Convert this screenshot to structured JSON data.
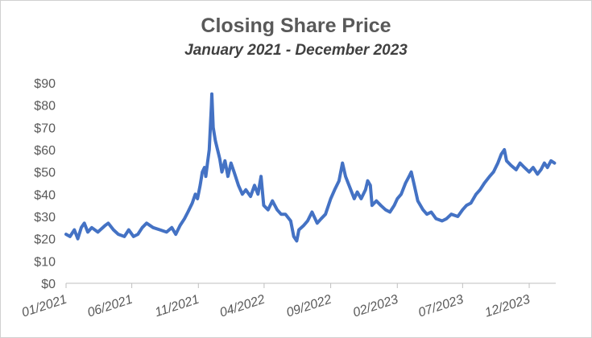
{
  "chart_data": {
    "type": "line",
    "title": "Closing Share Price",
    "subtitle": "January 2021 - December 2023",
    "xlabel": "",
    "ylabel": "",
    "ylim": [
      0,
      90
    ],
    "y_ticks": [
      "$0",
      "$10",
      "$20",
      "$30",
      "$40",
      "$50",
      "$60",
      "$70",
      "$80",
      "$90"
    ],
    "x_range": [
      "2021-01-01",
      "2024-01-31"
    ],
    "x_ticks": [
      {
        "date": "2021-01-01",
        "label": "01/2021"
      },
      {
        "date": "2021-06-01",
        "label": "06/2021"
      },
      {
        "date": "2021-11-01",
        "label": "11/2021"
      },
      {
        "date": "2022-04-01",
        "label": "04/2022"
      },
      {
        "date": "2022-09-01",
        "label": "09/2022"
      },
      {
        "date": "2023-02-01",
        "label": "02/2023"
      },
      {
        "date": "2023-07-01",
        "label": "07/2023"
      },
      {
        "date": "2023-12-01",
        "label": "12/2023"
      }
    ],
    "grid": false,
    "legend": "none",
    "series": [
      {
        "color": "#4472C4",
        "points": [
          [
            "2021-01-01",
            22
          ],
          [
            "2021-01-10",
            21
          ],
          [
            "2021-01-20",
            24
          ],
          [
            "2021-01-28",
            20
          ],
          [
            "2021-02-05",
            25
          ],
          [
            "2021-02-12",
            27
          ],
          [
            "2021-02-20",
            23
          ],
          [
            "2021-03-01",
            25
          ],
          [
            "2021-03-15",
            23
          ],
          [
            "2021-04-01",
            26
          ],
          [
            "2021-04-08",
            27
          ],
          [
            "2021-04-20",
            24
          ],
          [
            "2021-05-01",
            22
          ],
          [
            "2021-05-15",
            21
          ],
          [
            "2021-05-25",
            24
          ],
          [
            "2021-06-05",
            21
          ],
          [
            "2021-06-15",
            22
          ],
          [
            "2021-06-25",
            25
          ],
          [
            "2021-07-05",
            27
          ],
          [
            "2021-07-20",
            25
          ],
          [
            "2021-08-05",
            24
          ],
          [
            "2021-08-20",
            23
          ],
          [
            "2021-09-01",
            25
          ],
          [
            "2021-09-10",
            22
          ],
          [
            "2021-09-20",
            26
          ],
          [
            "2021-09-30",
            29
          ],
          [
            "2021-10-08",
            32
          ],
          [
            "2021-10-18",
            36
          ],
          [
            "2021-10-25",
            40
          ],
          [
            "2021-10-30",
            38
          ],
          [
            "2021-11-05",
            44
          ],
          [
            "2021-11-10",
            50
          ],
          [
            "2021-11-15",
            52
          ],
          [
            "2021-11-18",
            48
          ],
          [
            "2021-11-22",
            54
          ],
          [
            "2021-11-26",
            60
          ],
          [
            "2021-11-29",
            72
          ],
          [
            "2021-12-01",
            80
          ],
          [
            "2021-12-02",
            85
          ],
          [
            "2021-12-05",
            70
          ],
          [
            "2021-12-10",
            64
          ],
          [
            "2021-12-15",
            60
          ],
          [
            "2021-12-20",
            56
          ],
          [
            "2021-12-25",
            50
          ],
          [
            "2022-01-01",
            55
          ],
          [
            "2022-01-08",
            48
          ],
          [
            "2022-01-15",
            54
          ],
          [
            "2022-01-22",
            50
          ],
          [
            "2022-02-01",
            44
          ],
          [
            "2022-02-10",
            40
          ],
          [
            "2022-02-18",
            42
          ],
          [
            "2022-03-01",
            39
          ],
          [
            "2022-03-10",
            44
          ],
          [
            "2022-03-18",
            40
          ],
          [
            "2022-03-25",
            48
          ],
          [
            "2022-03-31",
            35
          ],
          [
            "2022-04-10",
            33
          ],
          [
            "2022-04-20",
            37
          ],
          [
            "2022-05-01",
            33
          ],
          [
            "2022-05-10",
            31
          ],
          [
            "2022-05-20",
            31
          ],
          [
            "2022-06-01",
            28
          ],
          [
            "2022-06-08",
            21
          ],
          [
            "2022-06-15",
            19
          ],
          [
            "2022-06-20",
            24
          ],
          [
            "2022-07-01",
            26
          ],
          [
            "2022-07-10",
            28
          ],
          [
            "2022-07-20",
            32
          ],
          [
            "2022-08-01",
            27
          ],
          [
            "2022-08-10",
            29
          ],
          [
            "2022-08-20",
            31
          ],
          [
            "2022-09-01",
            38
          ],
          [
            "2022-09-10",
            42
          ],
          [
            "2022-09-20",
            46
          ],
          [
            "2022-09-28",
            54
          ],
          [
            "2022-10-05",
            48
          ],
          [
            "2022-10-15",
            43
          ],
          [
            "2022-10-25",
            38
          ],
          [
            "2022-11-01",
            41
          ],
          [
            "2022-11-10",
            38
          ],
          [
            "2022-11-20",
            42
          ],
          [
            "2022-11-25",
            46
          ],
          [
            "2022-12-01",
            44
          ],
          [
            "2022-12-05",
            35
          ],
          [
            "2022-12-15",
            37
          ],
          [
            "2022-12-25",
            35
          ],
          [
            "2023-01-05",
            33
          ],
          [
            "2023-01-15",
            32
          ],
          [
            "2023-01-25",
            35
          ],
          [
            "2023-02-01",
            38
          ],
          [
            "2023-02-10",
            40
          ],
          [
            "2023-02-20",
            45
          ],
          [
            "2023-02-28",
            48
          ],
          [
            "2023-03-05",
            50
          ],
          [
            "2023-03-12",
            44
          ],
          [
            "2023-03-20",
            37
          ],
          [
            "2023-04-01",
            33
          ],
          [
            "2023-04-10",
            31
          ],
          [
            "2023-04-20",
            32
          ],
          [
            "2023-05-01",
            29
          ],
          [
            "2023-05-15",
            28
          ],
          [
            "2023-05-25",
            29
          ],
          [
            "2023-06-05",
            31
          ],
          [
            "2023-06-20",
            30
          ],
          [
            "2023-07-01",
            33
          ],
          [
            "2023-07-10",
            35
          ],
          [
            "2023-07-20",
            36
          ],
          [
            "2023-08-01",
            40
          ],
          [
            "2023-08-10",
            42
          ],
          [
            "2023-08-20",
            45
          ],
          [
            "2023-09-01",
            48
          ],
          [
            "2023-09-10",
            50
          ],
          [
            "2023-09-20",
            54
          ],
          [
            "2023-09-28",
            58
          ],
          [
            "2023-10-05",
            60
          ],
          [
            "2023-10-10",
            55
          ],
          [
            "2023-10-20",
            53
          ],
          [
            "2023-11-01",
            51
          ],
          [
            "2023-11-10",
            54
          ],
          [
            "2023-11-20",
            52
          ],
          [
            "2023-12-01",
            50
          ],
          [
            "2023-12-10",
            52
          ],
          [
            "2023-12-20",
            49
          ],
          [
            "2023-12-28",
            51
          ],
          [
            "2024-01-05",
            54
          ],
          [
            "2024-01-12",
            52
          ],
          [
            "2024-01-20",
            55
          ],
          [
            "2024-01-28",
            54
          ]
        ]
      }
    ]
  }
}
